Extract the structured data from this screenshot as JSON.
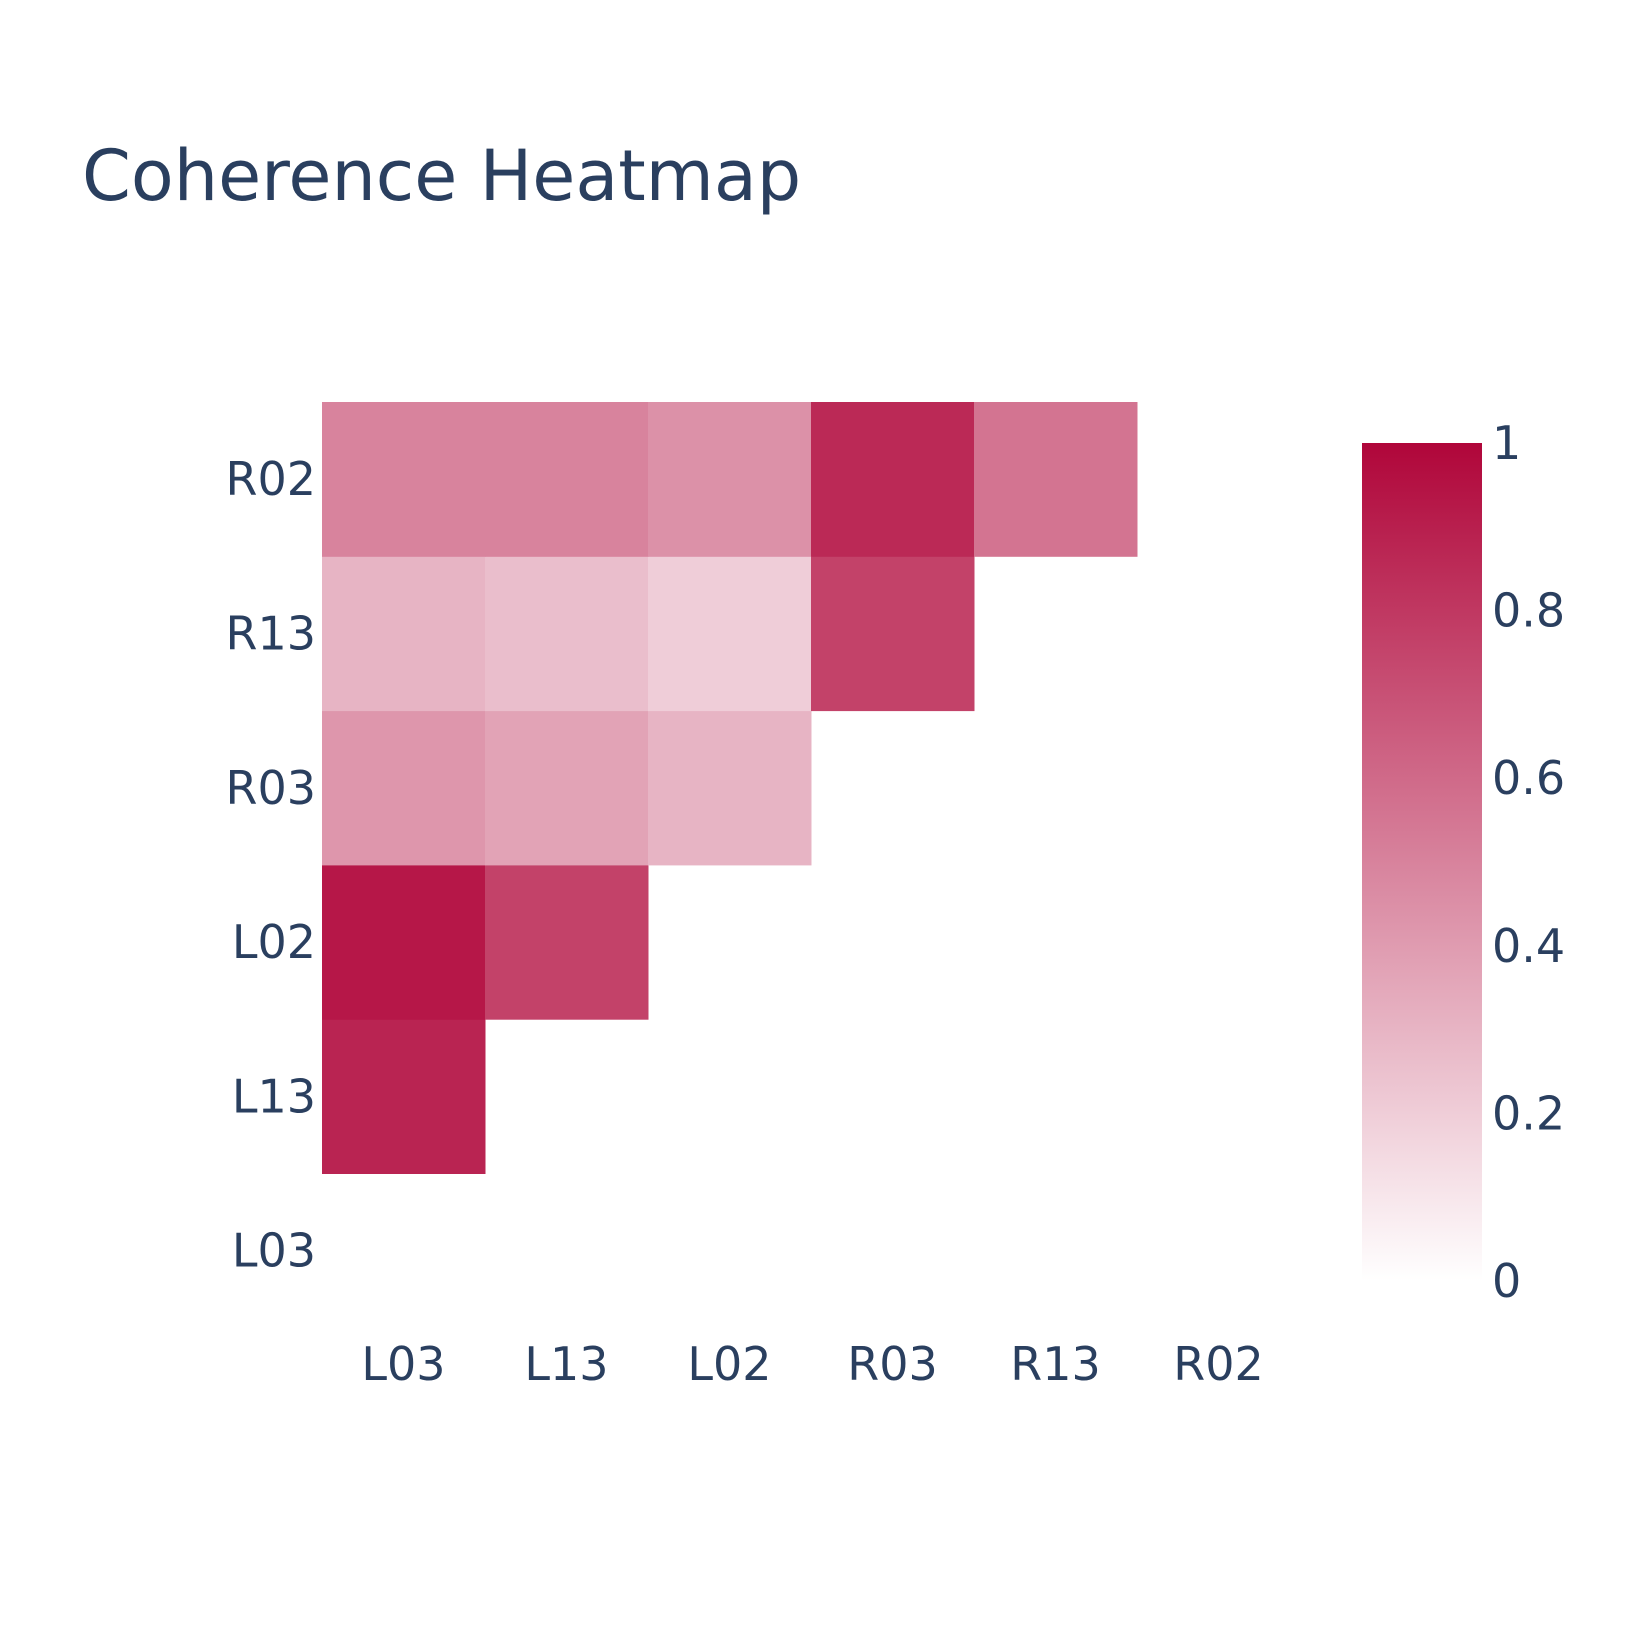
{
  "chart_data": {
    "type": "heatmap",
    "title": "Coherence Heatmap",
    "x": [
      "L03",
      "L13",
      "L02",
      "R03",
      "R13",
      "R02"
    ],
    "y": [
      "L03",
      "L13",
      "L02",
      "R03",
      "R13",
      "R02"
    ],
    "z": [
      [
        null,
        null,
        null,
        null,
        null,
        null
      ],
      [
        0.88,
        null,
        null,
        null,
        null,
        null
      ],
      [
        0.93,
        0.76,
        null,
        null,
        null,
        null
      ],
      [
        0.42,
        0.37,
        0.3,
        null,
        null,
        null
      ],
      [
        0.3,
        0.26,
        0.2,
        0.76,
        null,
        null
      ],
      [
        0.5,
        0.5,
        0.44,
        0.86,
        0.56,
        null
      ]
    ],
    "colorscale": {
      "min": 0,
      "max": 1,
      "low_color": "#ffffff",
      "high_color": "#b0063a"
    },
    "colorbar_ticks": [
      "0",
      "0.2",
      "0.4",
      "0.6",
      "0.8",
      "1"
    ],
    "colorbar_values": [
      0,
      0.2,
      0.4,
      0.6,
      0.8,
      1
    ]
  }
}
